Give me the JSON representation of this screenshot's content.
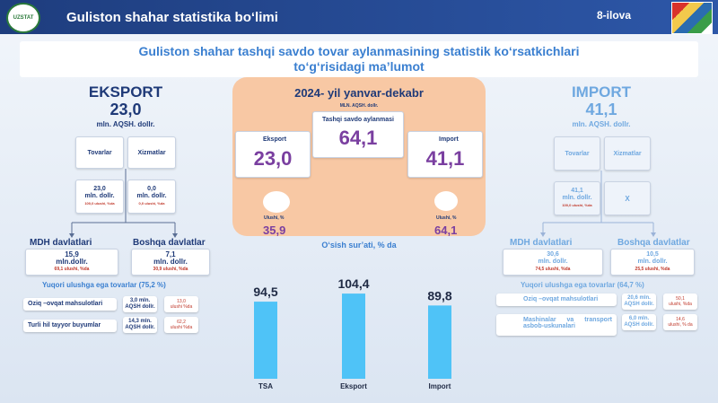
{
  "header": {
    "title": "Guliston shahar statistika bo‘limi",
    "appendix": "8-ilova",
    "logo_text": "UZSTAT"
  },
  "headline": {
    "line1": "Guliston shahar  tashqi savdo tovar aylanmasining statistik ko‘rsatkichlari",
    "line2": "to‘g‘risidagi  ma’lumot"
  },
  "export": {
    "title": "EKSPORT",
    "value": "23,0",
    "unit": "mln. AQSH. dollr.",
    "goods_label": "Tovarlar",
    "services_label": "Xizmatlar",
    "goods_value": "23,0",
    "goods_unit": "mln. dollr.",
    "goods_share": "100,0 ulushi, %da",
    "services_value": "0,0",
    "services_unit": "mln. dollr.",
    "services_share": "0,0 ulushi, %da",
    "mdh_label": "MDH davlatlari",
    "mdh_value": "15,9",
    "mdh_unit": "mln.dollr.",
    "mdh_share": "69,1 ulushi, %da",
    "other_label": "Boshqa davlatlar",
    "other_value": "7,1",
    "other_unit": "mln. dollr.",
    "other_share": "30,9 ulushi, %da",
    "top_label": "Yuqori ulushga ega tovarlar (75,2 %)",
    "items": [
      {
        "name": "Oziq –ovqat  mahsulotlari",
        "value": "3,0 mln. AQSH dollr.",
        "share": "13,0",
        "share_unit": "ulushi %da"
      },
      {
        "name": "Turli hil tayyor buyumlar",
        "value": "14,3 mln. AQSH dollr.",
        "share": "62,2",
        "share_unit": "ulushi %da"
      }
    ]
  },
  "import": {
    "title": "IMPORT",
    "value": "41,1",
    "unit": "mln. AQSH. dollr.",
    "goods_label": "Tovarlar",
    "services_label": "Xizmatlar",
    "goods_value": "41,1",
    "goods_unit": "mln. dollr.",
    "goods_share": "100,0 ulushi, %da",
    "services_value": "X",
    "mdh_label": "MDH davlatlari",
    "mdh_value": "30,6",
    "mdh_unit": "mln. dollr.",
    "mdh_share": "74,5 ulushi, %da",
    "other_label": "Boshqa davlatlar",
    "other_value": "10,5",
    "other_unit": "mln. dollr.",
    "other_share": "25,5 ulushi, %da",
    "top_label": "Yuqori ulushga ega tovarlar (64,7 %)",
    "items": [
      {
        "name": "Oziq –ovqat  mahsulotlari",
        "value": "20,6 mln. AQSH dollr.",
        "share": "50,1",
        "share_unit": "ulushi, %da"
      },
      {
        "name": "Mashinalar    va    transport asbob-uskunalari",
        "value": "6,0 mln. AQSH dollr.",
        "share": "14,6",
        "share_unit": "ulushi, % da"
      }
    ]
  },
  "center": {
    "period": "2024- yil yanvar-dekabr",
    "unit": "MLN. AQSH. dollr.",
    "turnover_label": "Tashqi savdo  aylanmasi",
    "turnover_value": "64,1",
    "export_label": "Eksport",
    "export_value": "23,0",
    "import_label": "Import",
    "import_value": "41,1",
    "export_share_label": "Ulushi, %",
    "export_share": "35,9",
    "import_share_label": "Ulushi, %",
    "import_share": "64,1"
  },
  "colors": {
    "accent": "#3a7fd0",
    "bar": "#4fc3f7",
    "peach": "#f8c8a4",
    "purple": "#7a3fa0"
  },
  "chart_data": {
    "type": "bar",
    "title": "O‘sish sur’ati, % da",
    "categories": [
      "TSA",
      "Eksport",
      "Import"
    ],
    "values": [
      94.5,
      104.4,
      89.8
    ],
    "value_labels": [
      "94,5",
      "104,4",
      "89,8"
    ],
    "ylim": [
      0,
      110
    ]
  }
}
